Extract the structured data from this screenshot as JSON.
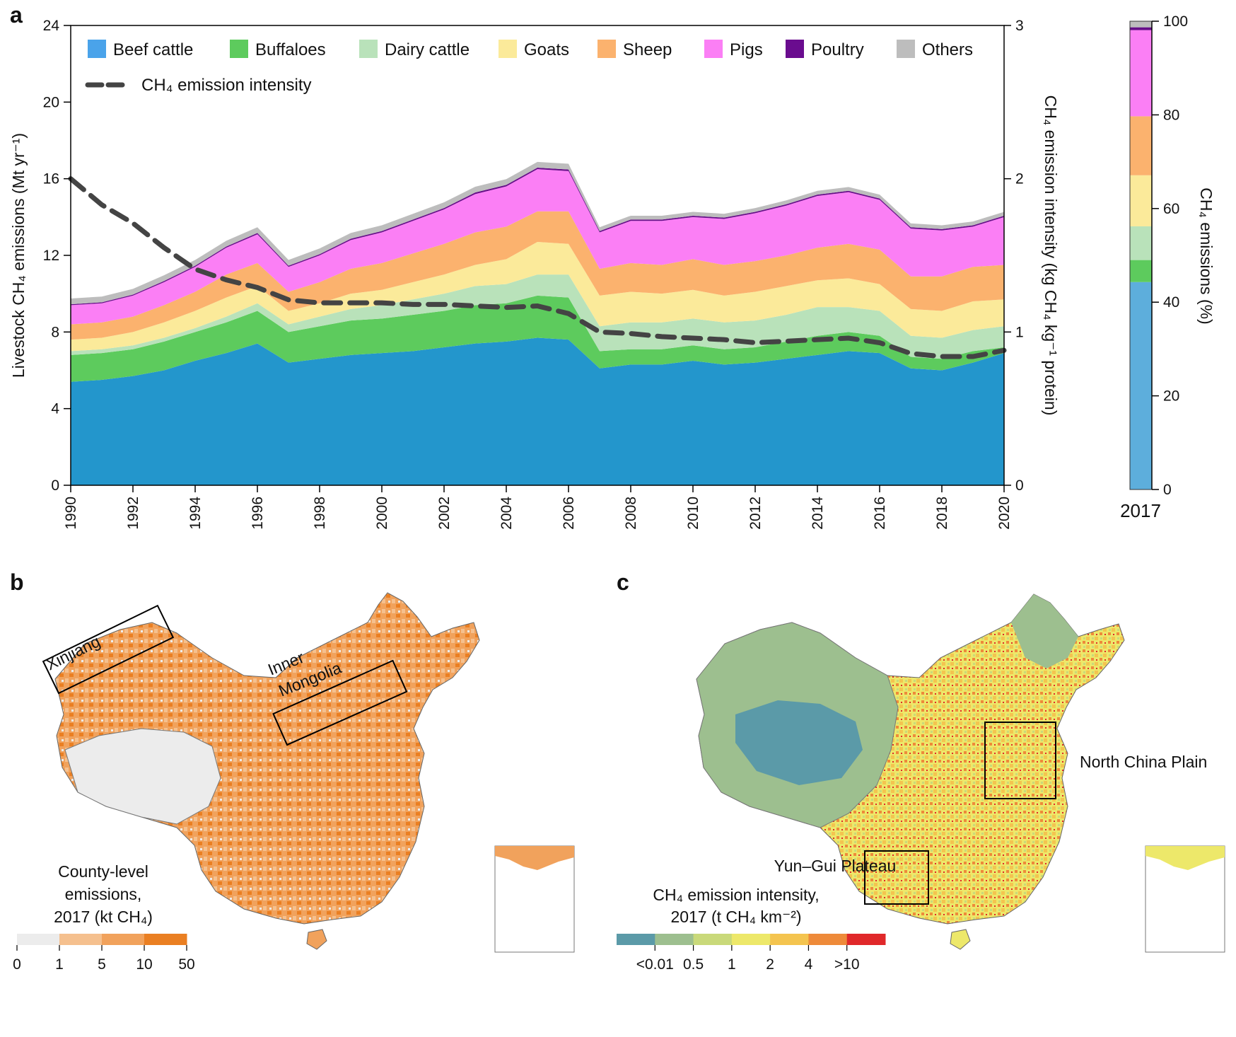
{
  "panels": {
    "a": {
      "letter": "a"
    },
    "b": {
      "letter": "b",
      "region_labels": [
        "Xinjiang",
        "Inner",
        "Mongolia"
      ],
      "legend_title_lines": [
        "County-level",
        "emissions,",
        "2017 (kt CH₄)"
      ],
      "colorbar": {
        "colors": [
          "#ececec",
          "#f5c08e",
          "#f1a25c",
          "#ea7f22"
        ],
        "tick_labels": [
          "0",
          "1",
          "5",
          "10",
          "50"
        ]
      }
    },
    "c": {
      "letter": "c",
      "region_labels": [
        "North China Plain",
        "Yun–Gui Plateau"
      ],
      "legend_title_lines": [
        "CH₄ emission intensity,",
        "2017 (t CH₄ km⁻²)"
      ],
      "colorbar": {
        "colors": [
          "#5b9aa8",
          "#9dbf8f",
          "#c9d97a",
          "#ede86a",
          "#f4c44f",
          "#ee8a3a",
          "#e0282a"
        ],
        "tick_labels": [
          "<0.01",
          "0.5",
          "1",
          "2",
          "4",
          ">10"
        ]
      }
    }
  },
  "chart_data": [
    {
      "type": "area",
      "stacked": true,
      "x": [
        1990,
        1991,
        1992,
        1993,
        1994,
        1995,
        1996,
        1997,
        1998,
        1999,
        2000,
        2001,
        2002,
        2003,
        2004,
        2005,
        2006,
        2007,
        2008,
        2009,
        2010,
        2011,
        2012,
        2013,
        2014,
        2015,
        2016,
        2017,
        2018,
        2019,
        2020
      ],
      "ylabel": "Livestock CH₄ emissions (Mt yr⁻¹)",
      "ylim": [
        0,
        24
      ],
      "yticks": [
        0,
        4,
        8,
        12,
        16,
        20,
        24
      ],
      "xticks": [
        1990,
        1992,
        1994,
        1996,
        1998,
        2000,
        2002,
        2004,
        2006,
        2008,
        2010,
        2012,
        2014,
        2016,
        2018,
        2020
      ],
      "y2label": "CH₄ emission intensity (kg CH₄ kg⁻¹ protein)",
      "y2lim": [
        0,
        3
      ],
      "y2ticks": [
        0,
        1,
        2,
        3
      ],
      "legend": {
        "placement": "top-left",
        "line_label": "CH₄ emission intensity"
      },
      "series": [
        {
          "name": "Beef cattle",
          "color": "#2396cc",
          "legend_color": "#4aa3ea",
          "values": [
            5.4,
            5.5,
            5.7,
            6.0,
            6.5,
            6.9,
            7.4,
            6.4,
            6.6,
            6.8,
            6.9,
            7.0,
            7.2,
            7.4,
            7.5,
            7.7,
            7.6,
            6.1,
            6.3,
            6.3,
            6.5,
            6.3,
            6.4,
            6.6,
            6.8,
            7.0,
            6.9,
            6.1,
            6.0,
            6.4,
            6.9
          ]
        },
        {
          "name": "Buffaloes",
          "color": "#5dcb5d",
          "legend_color": "#5dcb5d",
          "values": [
            1.4,
            1.4,
            1.4,
            1.5,
            1.5,
            1.6,
            1.7,
            1.6,
            1.7,
            1.8,
            1.8,
            1.9,
            1.9,
            2.0,
            2.0,
            2.2,
            2.2,
            0.9,
            0.8,
            0.8,
            0.8,
            0.8,
            0.8,
            0.9,
            1.0,
            1.0,
            0.9,
            0.6,
            0.6,
            0.6,
            0.3
          ]
        },
        {
          "name": "Dairy cattle",
          "color": "#b9e2ba",
          "legend_color": "#b9e2ba",
          "values": [
            0.2,
            0.2,
            0.2,
            0.2,
            0.2,
            0.3,
            0.4,
            0.4,
            0.5,
            0.6,
            0.7,
            0.8,
            0.9,
            1.0,
            1.0,
            1.1,
            1.2,
            1.3,
            1.4,
            1.4,
            1.4,
            1.4,
            1.4,
            1.4,
            1.5,
            1.3,
            1.3,
            1.1,
            1.1,
            1.1,
            1.1
          ]
        },
        {
          "name": "Goats",
          "color": "#fbea9a",
          "legend_color": "#fbea9a",
          "values": [
            0.6,
            0.6,
            0.7,
            0.8,
            0.9,
            1.0,
            0.9,
            0.7,
            0.7,
            0.8,
            0.8,
            0.9,
            1.0,
            1.1,
            1.3,
            1.7,
            1.6,
            1.6,
            1.6,
            1.5,
            1.5,
            1.4,
            1.5,
            1.5,
            1.4,
            1.5,
            1.4,
            1.4,
            1.4,
            1.5,
            1.4
          ]
        },
        {
          "name": "Sheep",
          "color": "#fbb26e",
          "legend_color": "#fbb26e",
          "values": [
            0.8,
            0.8,
            0.8,
            0.9,
            1.0,
            1.2,
            1.2,
            1.0,
            1.1,
            1.3,
            1.4,
            1.5,
            1.6,
            1.7,
            1.7,
            1.6,
            1.7,
            1.4,
            1.5,
            1.5,
            1.6,
            1.6,
            1.6,
            1.6,
            1.7,
            1.8,
            1.8,
            1.7,
            1.8,
            1.8,
            1.8
          ]
        },
        {
          "name": "Pigs",
          "color": "#fb7ff5",
          "legend_color": "#fb7ff5",
          "values": [
            1.0,
            1.0,
            1.1,
            1.2,
            1.3,
            1.4,
            1.5,
            1.3,
            1.4,
            1.5,
            1.6,
            1.7,
            1.8,
            2.0,
            2.1,
            2.2,
            2.1,
            1.9,
            2.2,
            2.3,
            2.2,
            2.4,
            2.5,
            2.6,
            2.7,
            2.7,
            2.6,
            2.5,
            2.4,
            2.1,
            2.5
          ]
        },
        {
          "name": "Poultry",
          "color": "#660e88",
          "legend_color": "#6a0c8f",
          "values": [
            0.05,
            0.05,
            0.05,
            0.06,
            0.06,
            0.06,
            0.07,
            0.06,
            0.06,
            0.07,
            0.07,
            0.07,
            0.07,
            0.08,
            0.08,
            0.08,
            0.08,
            0.07,
            0.07,
            0.07,
            0.07,
            0.07,
            0.07,
            0.07,
            0.07,
            0.07,
            0.07,
            0.07,
            0.07,
            0.07,
            0.07
          ]
        },
        {
          "name": "Others",
          "color": "#bdbdbd",
          "legend_color": "#bdbdbd",
          "values": [
            0.3,
            0.3,
            0.3,
            0.3,
            0.3,
            0.3,
            0.3,
            0.3,
            0.3,
            0.3,
            0.3,
            0.3,
            0.3,
            0.3,
            0.3,
            0.3,
            0.3,
            0.2,
            0.2,
            0.2,
            0.2,
            0.2,
            0.2,
            0.2,
            0.2,
            0.2,
            0.2,
            0.2,
            0.2,
            0.2,
            0.2
          ]
        }
      ],
      "line_series": {
        "name": "CH₄ emission intensity",
        "axis": "right",
        "style": "dashed",
        "color": "#444444",
        "values": [
          2.0,
          1.83,
          1.71,
          1.55,
          1.41,
          1.34,
          1.29,
          1.21,
          1.19,
          1.19,
          1.19,
          1.18,
          1.18,
          1.17,
          1.16,
          1.17,
          1.12,
          1.0,
          0.99,
          0.97,
          0.96,
          0.95,
          0.93,
          0.94,
          0.95,
          0.96,
          0.93,
          0.86,
          0.84,
          0.84,
          0.88
        ]
      }
    },
    {
      "type": "bar",
      "stacked": true,
      "categories": [
        "2017"
      ],
      "ylabel": "CH₄ emissions (%)",
      "ylim": [
        0,
        100
      ],
      "yticks": [
        0,
        20,
        40,
        60,
        80,
        100
      ],
      "series": [
        {
          "name": "Beef cattle",
          "color": "#5daedc",
          "values": [
            44.3
          ]
        },
        {
          "name": "Buffaloes",
          "color": "#5dcb5d",
          "values": [
            4.7
          ]
        },
        {
          "name": "Dairy cattle",
          "color": "#b9e2ba",
          "values": [
            7.2
          ]
        },
        {
          "name": "Goats",
          "color": "#fbea9a",
          "values": [
            10.9
          ]
        },
        {
          "name": "Sheep",
          "color": "#fbb26e",
          "values": [
            12.6
          ]
        },
        {
          "name": "Pigs",
          "color": "#fb7ff5",
          "values": [
            18.4
          ]
        },
        {
          "name": "Poultry",
          "color": "#660e88",
          "values": [
            0.6
          ]
        },
        {
          "name": "Others",
          "color": "#bdbdbd",
          "values": [
            1.3
          ]
        }
      ]
    }
  ]
}
